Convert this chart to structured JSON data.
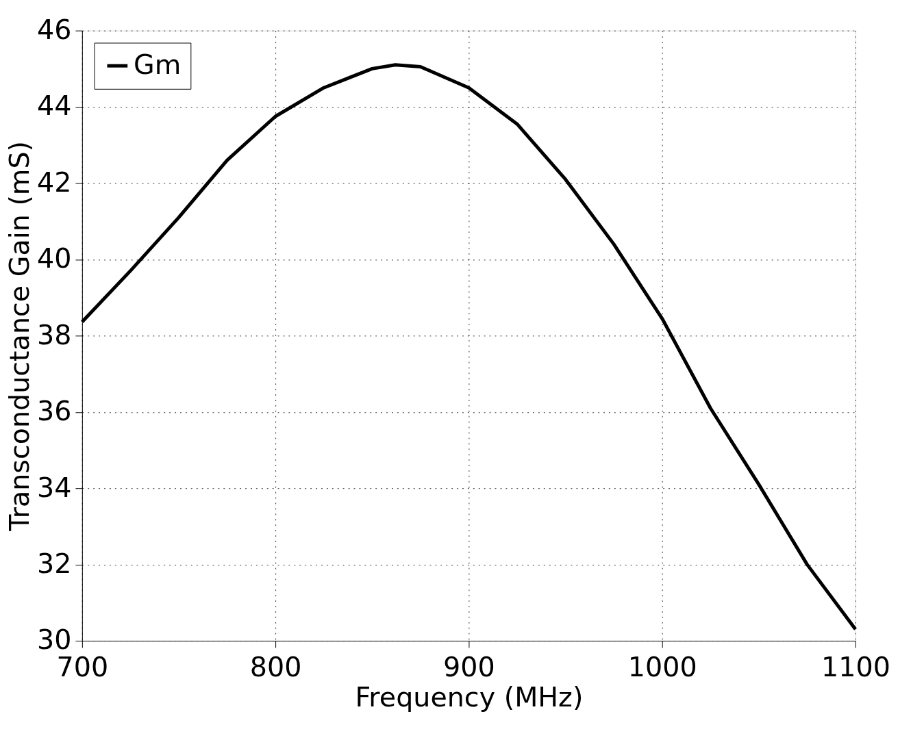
{
  "chart_data": {
    "type": "line",
    "xlabel": "Frequency (MHz)",
    "ylabel": "Transconductance Gain (mS)",
    "xlim": [
      700,
      1100
    ],
    "xticks": [
      700,
      800,
      900,
      1000,
      1100
    ],
    "ylim": [
      30,
      46
    ],
    "yticks": [
      30,
      32,
      34,
      36,
      38,
      40,
      42,
      44,
      46
    ],
    "grid": true,
    "legend": "top left",
    "line_style": "solid",
    "marker": "none",
    "x": [
      700,
      725,
      750,
      775,
      800,
      825,
      850,
      862,
      875,
      900,
      925,
      950,
      975,
      1000,
      1025,
      1050,
      1075,
      1100
    ],
    "series": [
      {
        "name": "Gm",
        "color": "#000000",
        "values": [
          38.36,
          39.7,
          41.1,
          42.6,
          43.75,
          44.5,
          45.0,
          45.1,
          45.05,
          44.5,
          43.55,
          42.1,
          40.4,
          38.45,
          36.1,
          34.1,
          32.0,
          30.3
        ]
      }
    ]
  }
}
